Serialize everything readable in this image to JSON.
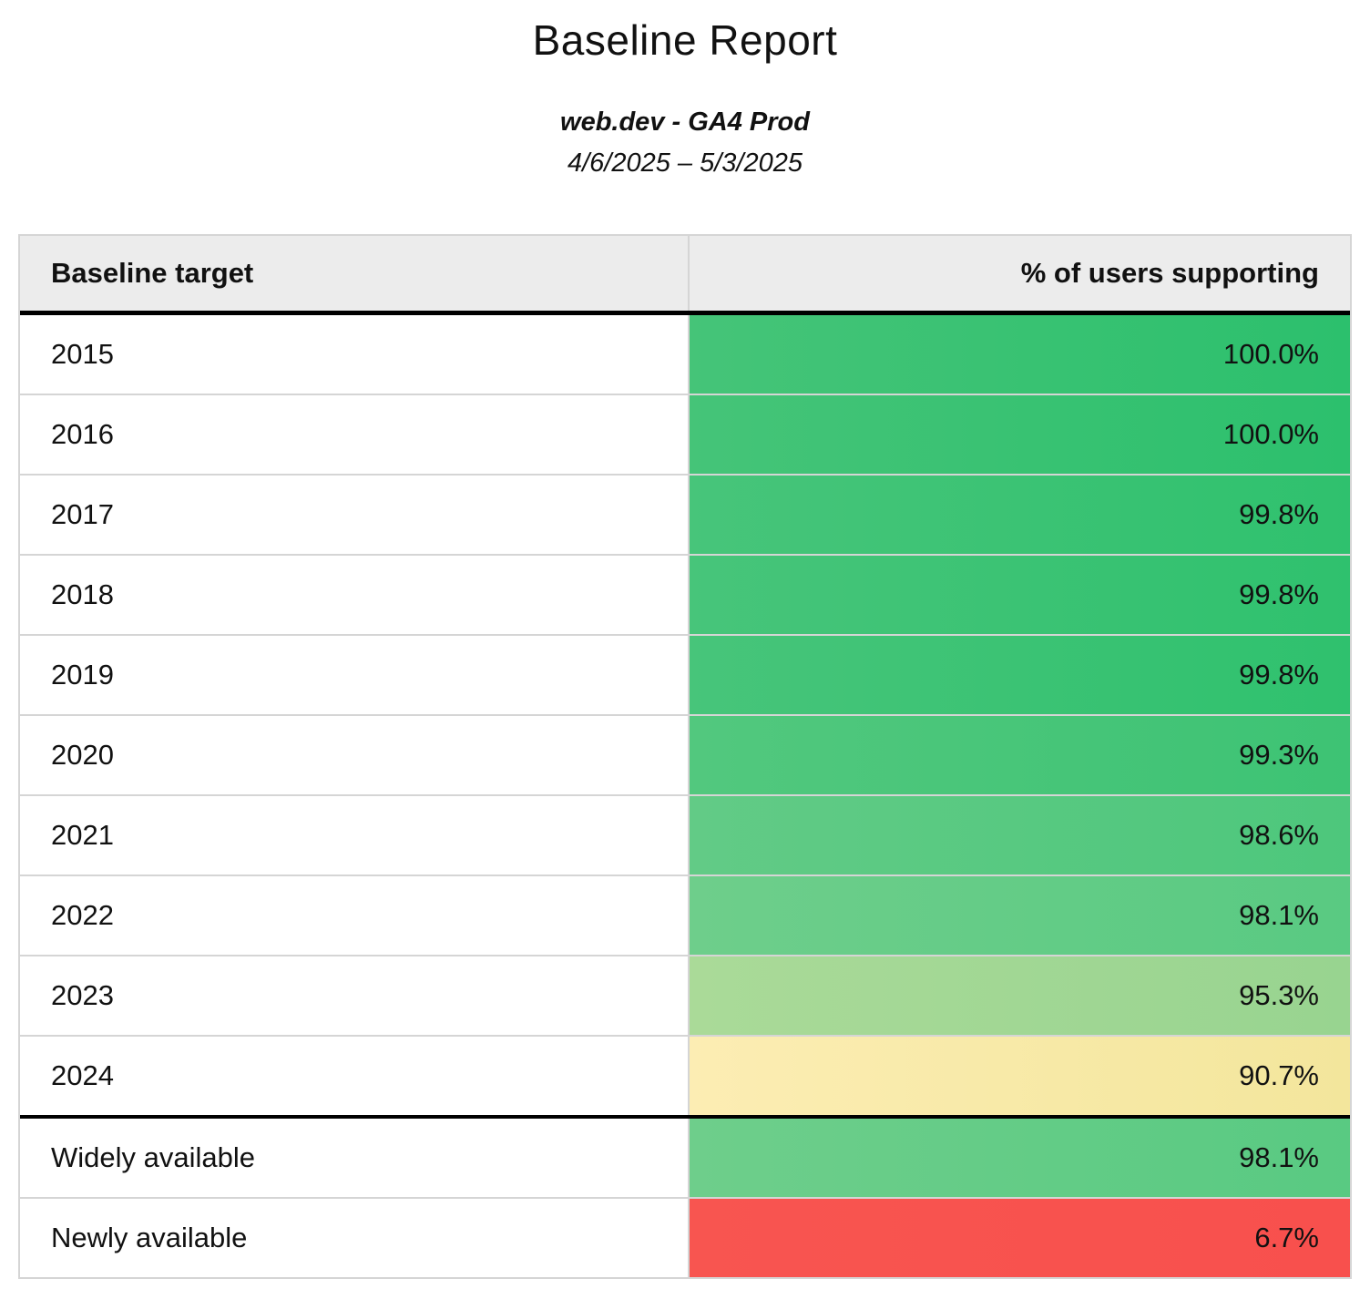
{
  "page": {
    "title": "Baseline Report",
    "subtitle": "web.dev - GA4 Prod",
    "date_range": "4/6/2025 – 5/3/2025"
  },
  "colors": {
    "header_background": "#ececec",
    "light_border": "#d5d5d5",
    "section_border": "#000000",
    "text": "#111111"
  },
  "table": {
    "columns": [
      "Baseline target",
      "% of users supporting"
    ],
    "rows": [
      {
        "label": "2015",
        "value": "100.0%",
        "color_left": "#45c478",
        "color_right": "#2cc06d"
      },
      {
        "label": "2016",
        "value": "100.0%",
        "color_left": "#45c478",
        "color_right": "#2cc06d"
      },
      {
        "label": "2017",
        "value": "99.8%",
        "color_left": "#47c57a",
        "color_right": "#2fc16e"
      },
      {
        "label": "2018",
        "value": "99.8%",
        "color_left": "#47c57a",
        "color_right": "#2fc16e"
      },
      {
        "label": "2019",
        "value": "99.8%",
        "color_left": "#47c57a",
        "color_right": "#2fc16e"
      },
      {
        "label": "2020",
        "value": "99.3%",
        "color_left": "#52c87e",
        "color_right": "#3dc374"
      },
      {
        "label": "2021",
        "value": "98.6%",
        "color_left": "#62cb86",
        "color_right": "#4dc77c"
      },
      {
        "label": "2022",
        "value": "98.1%",
        "color_left": "#6ece8b",
        "color_right": "#59ca82"
      },
      {
        "label": "2023",
        "value": "95.3%",
        "color_left": "#aada98",
        "color_right": "#98d490"
      },
      {
        "label": "2024",
        "value": "90.7%",
        "color_left": "#fcedb3",
        "color_right": "#f3e69c"
      },
      {
        "label": "Widely available",
        "value": "98.1%",
        "color_left": "#6ece8b",
        "color_right": "#59ca82"
      },
      {
        "label": "Newly available",
        "value": "6.7%",
        "color_left": "#f85550",
        "color_right": "#f8504d"
      }
    ]
  },
  "chart_data": {
    "type": "table",
    "title": "Baseline Report",
    "subtitle": "web.dev - GA4 Prod",
    "date_range": "4/6/2025 – 5/3/2025",
    "columns": [
      "Baseline target",
      "% of users supporting"
    ],
    "categories": [
      "2015",
      "2016",
      "2017",
      "2018",
      "2019",
      "2020",
      "2021",
      "2022",
      "2023",
      "2024",
      "Widely available",
      "Newly available"
    ],
    "values": [
      100.0,
      100.0,
      99.8,
      99.8,
      99.8,
      99.3,
      98.6,
      98.1,
      95.3,
      90.7,
      98.1,
      6.7
    ],
    "value_unit": "%",
    "color_scale": "green-to-red heatmap on value cells"
  }
}
